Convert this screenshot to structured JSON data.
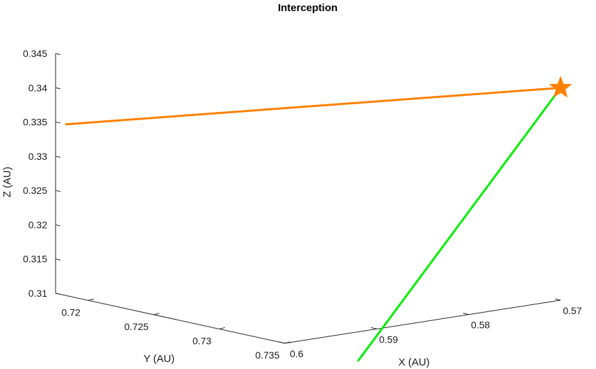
{
  "chart_data": {
    "type": "line3d",
    "title": "Interception",
    "xlabel": "X (AU)",
    "ylabel": "Y (AU)",
    "zlabel": "Z (AU)",
    "xlim": [
      0.57,
      0.6
    ],
    "ylim": [
      0.7175,
      0.735
    ],
    "zlim": [
      0.31,
      0.345
    ],
    "xticks": [
      "0.6",
      "0.59",
      "0.58",
      "0.57"
    ],
    "yticks": [
      "0.72",
      "0.725",
      "0.73",
      "0.735"
    ],
    "zticks": [
      "0.31",
      "0.315",
      "0.32",
      "0.325",
      "0.33",
      "0.335",
      "0.34",
      "0.345"
    ],
    "grid": false,
    "series": [
      {
        "color": "#ff8000",
        "points": [
          {
            "x": 0.6,
            "y": 0.7183,
            "z": 0.335
          },
          {
            "x": 0.57,
            "y": 0.735,
            "z": 0.341
          }
        ]
      },
      {
        "color": "#00ee00",
        "points": [
          {
            "x": 0.592,
            "y": 0.735,
            "z": 0.3058
          },
          {
            "x": 0.57,
            "y": 0.735,
            "z": 0.341
          }
        ]
      }
    ],
    "marker": {
      "symbol": "star",
      "color": "#ff8000",
      "x": 0.57,
      "y": 0.735,
      "z": 0.341
    }
  }
}
